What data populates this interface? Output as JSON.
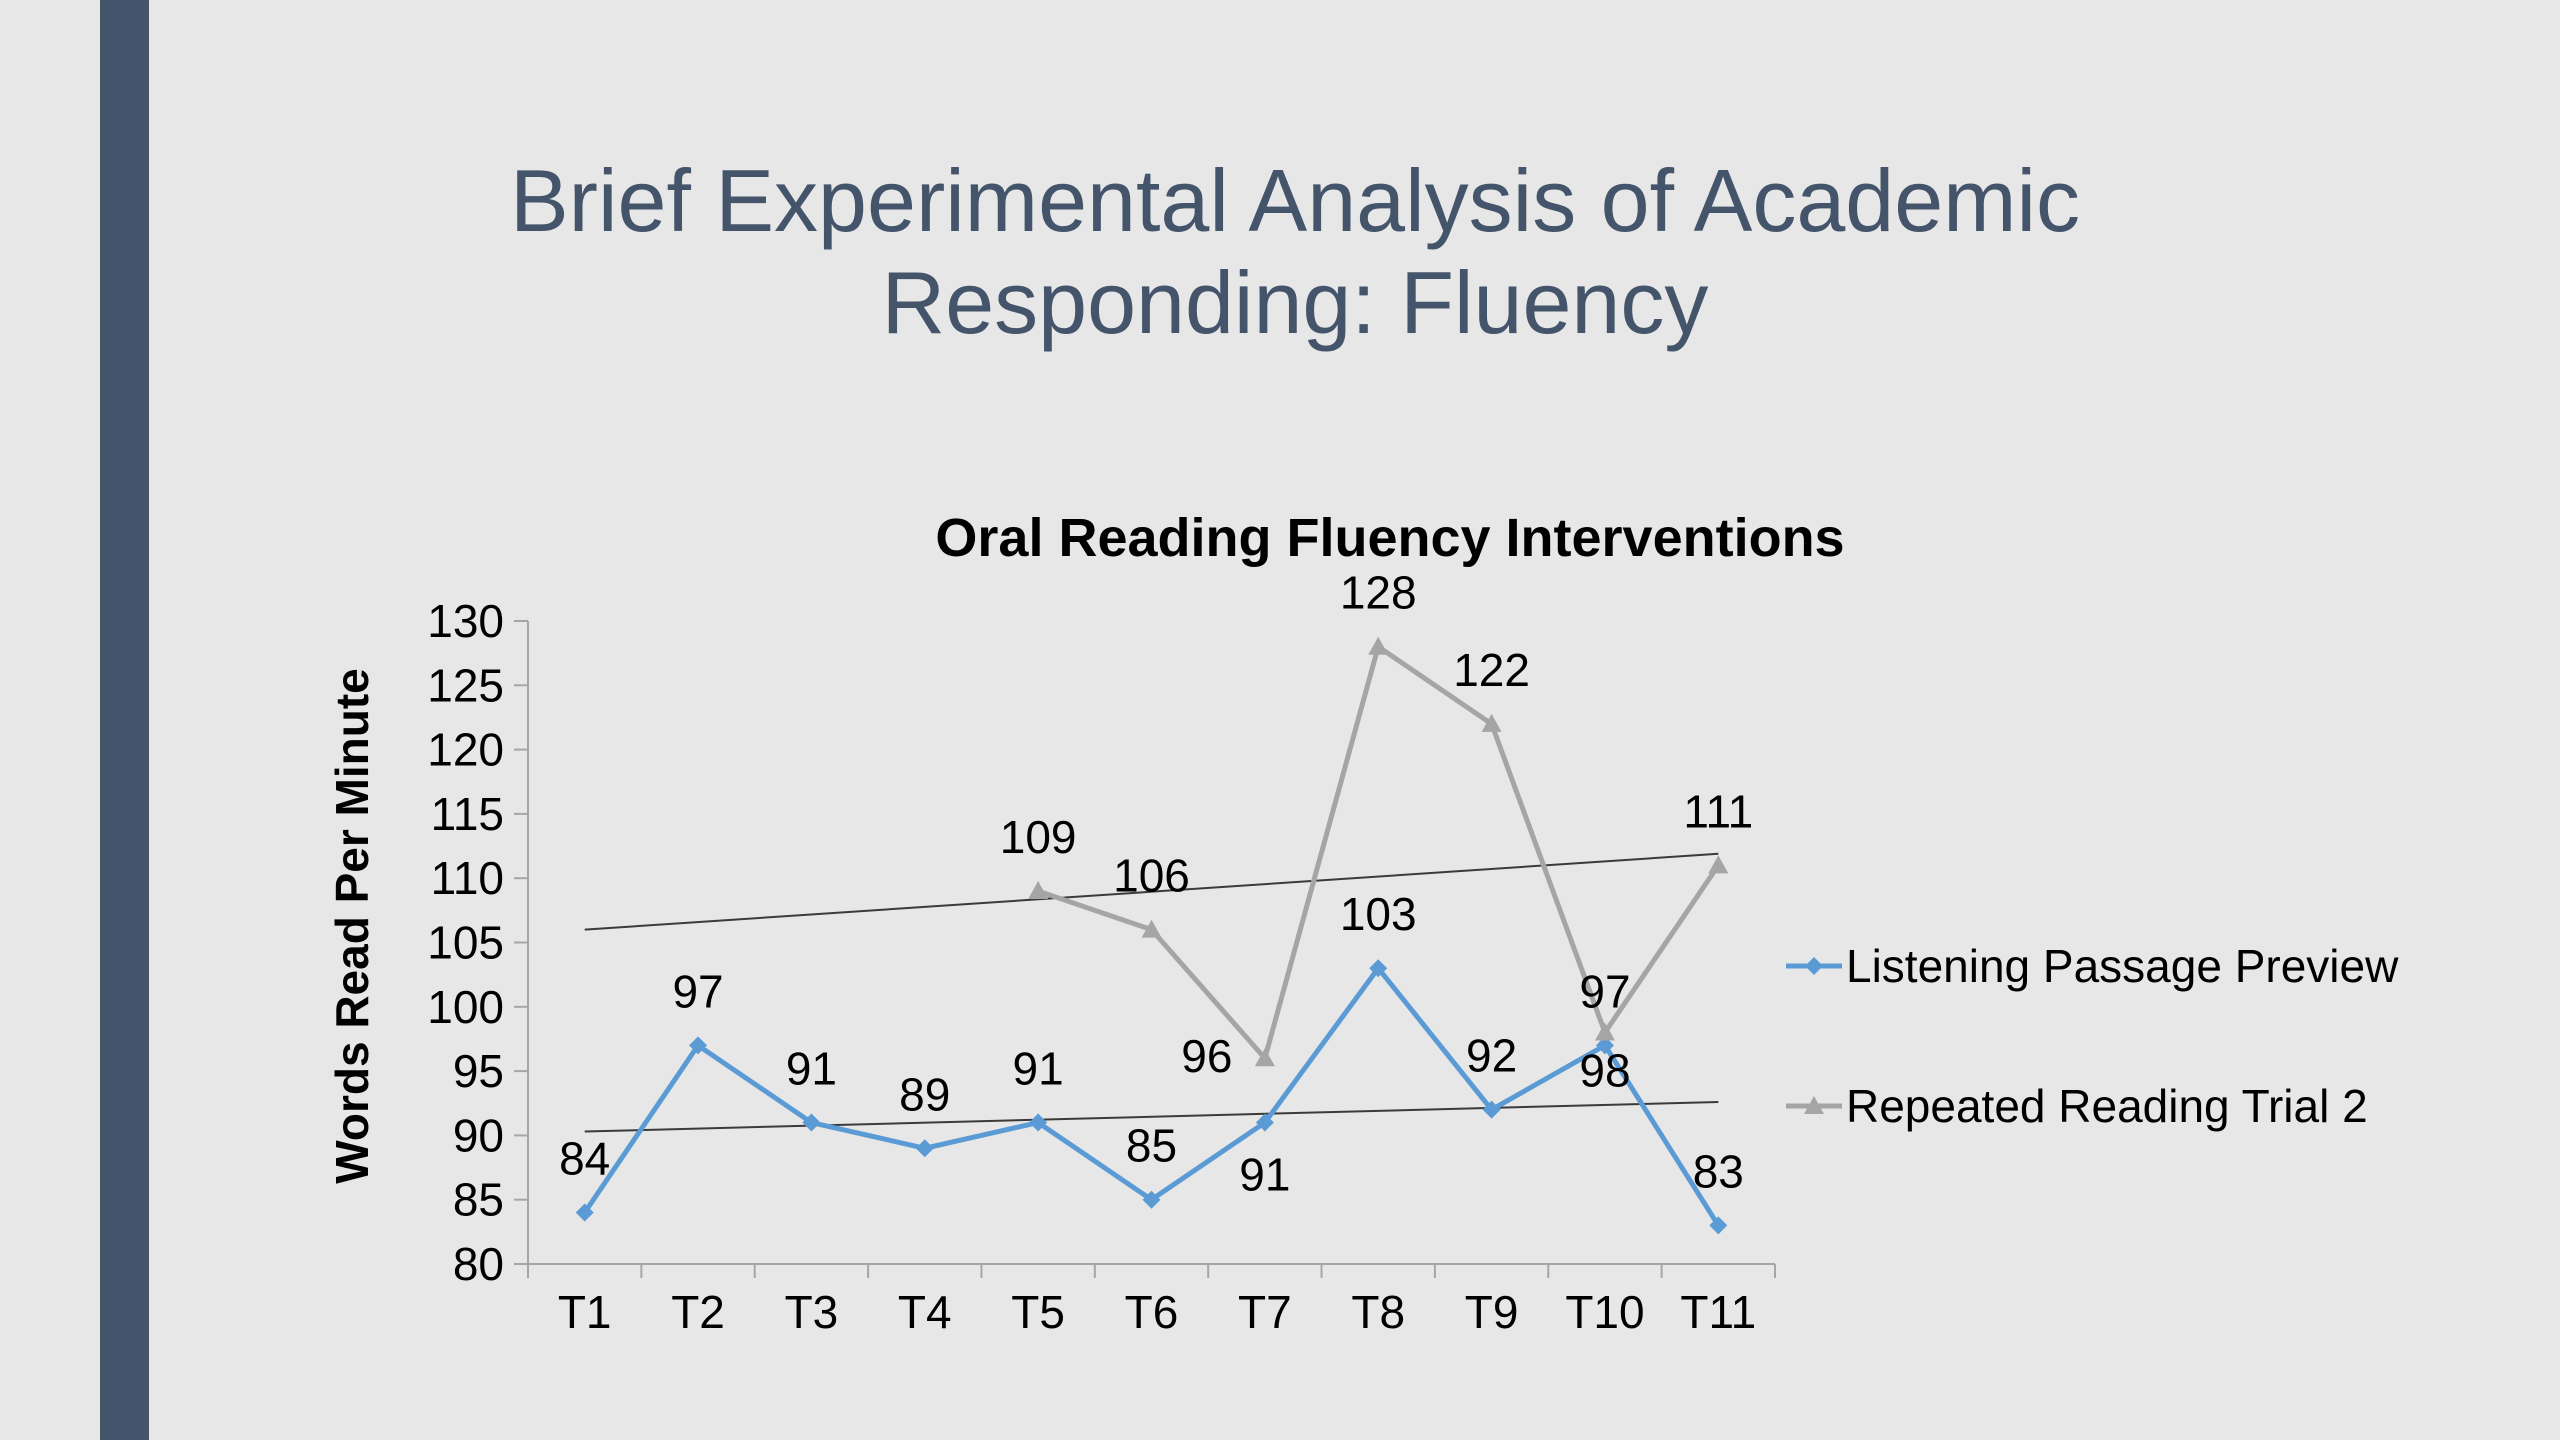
{
  "slide": {
    "title_line1": "Brief Experimental Analysis of Academic",
    "title_line2": "Responding: Fluency",
    "accent_color": "#44546a",
    "title_color": "#44546a",
    "background": "#e7e7e7"
  },
  "chart_data": {
    "type": "line",
    "title": "Oral Reading Fluency Interventions",
    "xlabel": "",
    "ylabel": "Words Read Per Minute",
    "ylim": [
      80,
      130
    ],
    "ytick_step": 5,
    "grid": false,
    "legend_position": "right",
    "categories": [
      "T1",
      "T2",
      "T3",
      "T4",
      "T5",
      "T6",
      "T7",
      "T8",
      "T9",
      "T10",
      "T11"
    ],
    "series": [
      {
        "name": "Listening Passage Preview",
        "color": "#5b9bd5",
        "marker": "diamond",
        "values": [
          84,
          97,
          91,
          89,
          91,
          85,
          91,
          103,
          92,
          97,
          83
        ],
        "trendline": {
          "start": 90.3,
          "end": 92.6
        }
      },
      {
        "name": "Repeated Reading Trial 2",
        "color": "#a5a5a5",
        "marker": "triangle",
        "values": [
          null,
          null,
          null,
          null,
          109,
          106,
          96,
          128,
          122,
          98,
          111
        ],
        "trendline": {
          "start": 106.0,
          "end": 111.9
        }
      }
    ]
  }
}
